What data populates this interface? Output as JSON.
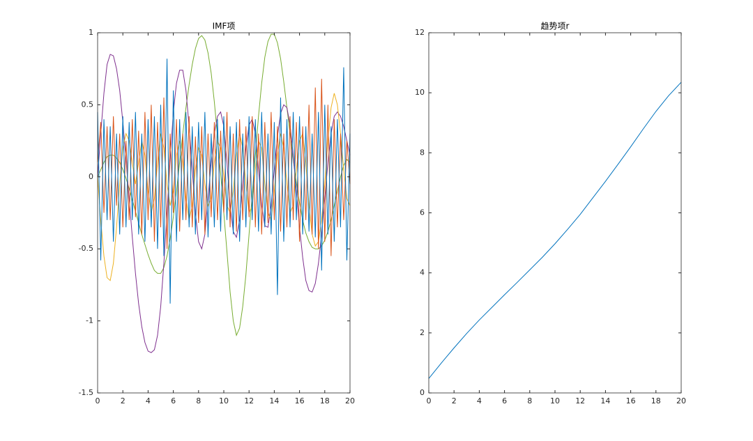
{
  "chart_data": [
    {
      "type": "line",
      "title": "IMF项",
      "xlim": [
        0,
        20
      ],
      "xticks": [
        0,
        2,
        4,
        6,
        8,
        10,
        12,
        14,
        16,
        18,
        20
      ],
      "ylim": [
        -1.5,
        1
      ],
      "yticks": [
        -1.5,
        -1,
        -0.5,
        0,
        0.5,
        1
      ],
      "x": [
        0,
        0.25,
        0.5,
        0.75,
        1,
        1.25,
        1.5,
        1.75,
        2,
        2.25,
        2.5,
        2.75,
        3,
        3.25,
        3.5,
        3.75,
        4,
        4.25,
        4.5,
        4.75,
        5,
        5.25,
        5.5,
        5.75,
        6,
        6.25,
        6.5,
        6.75,
        7,
        7.25,
        7.5,
        7.75,
        8,
        8.25,
        8.5,
        8.75,
        9,
        9.25,
        9.5,
        9.75,
        10,
        10.25,
        10.5,
        10.75,
        11,
        11.25,
        11.5,
        11.75,
        12,
        12.25,
        12.5,
        12.75,
        13,
        13.25,
        13.5,
        13.75,
        14,
        14.25,
        14.5,
        14.75,
        15,
        15.25,
        15.5,
        15.75,
        16,
        16.25,
        16.5,
        16.75,
        17,
        17.25,
        17.5,
        17.75,
        18,
        18.25,
        18.5,
        18.75,
        19,
        19.25,
        19.5,
        19.75,
        20
      ],
      "series": [
        {
          "color": "#77AC30",
          "values": [
            0,
            0.05,
            0.1,
            0.14,
            0.15,
            0.15,
            0.13,
            0.1,
            0.05,
            -0.01,
            -0.08,
            -0.16,
            -0.24,
            -0.32,
            -0.4,
            -0.47,
            -0.54,
            -0.6,
            -0.65,
            -0.67,
            -0.67,
            -0.63,
            -0.55,
            -0.43,
            -0.28,
            -0.1,
            0.1,
            0.3,
            0.48,
            0.64,
            0.78,
            0.89,
            0.96,
            0.98,
            0.95,
            0.86,
            0.72,
            0.52,
            0.28,
            0.02,
            -0.25,
            -0.52,
            -0.8,
            -1.0,
            -1.1,
            -1.05,
            -0.9,
            -0.68,
            -0.4,
            -0.12,
            0.15,
            0.42,
            0.65,
            0.83,
            0.94,
            0.99,
            0.99,
            0.93,
            0.82,
            0.66,
            0.48,
            0.3,
            0.12,
            -0.04,
            -0.18,
            -0.3,
            -0.39,
            -0.45,
            -0.49,
            -0.5,
            -0.5,
            -0.48,
            -0.44,
            -0.38,
            -0.3,
            -0.2,
            -0.1,
            0,
            0.08,
            0.12,
            0.1
          ]
        },
        {
          "color": "#7E2F8E",
          "values": [
            0,
            0.3,
            0.58,
            0.78,
            0.85,
            0.84,
            0.75,
            0.6,
            0.38,
            0.12,
            -0.15,
            -0.42,
            -0.67,
            -0.88,
            -1.04,
            -1.15,
            -1.21,
            -1.22,
            -1.2,
            -1.1,
            -0.9,
            -0.6,
            -0.25,
            0.12,
            0.45,
            0.65,
            0.74,
            0.74,
            0.6,
            0.35,
            0.05,
            -0.25,
            -0.45,
            -0.5,
            -0.4,
            -0.15,
            0.1,
            0.3,
            0.42,
            0.45,
            0.35,
            0.1,
            -0.2,
            -0.38,
            -0.42,
            -0.3,
            -0.05,
            0.2,
            0.36,
            0.4,
            0.3,
            0.05,
            -0.2,
            -0.34,
            -0.35,
            -0.2,
            0.05,
            0.28,
            0.44,
            0.5,
            0.48,
            0.36,
            0.15,
            -0.1,
            -0.35,
            -0.56,
            -0.72,
            -0.79,
            -0.8,
            -0.74,
            -0.6,
            -0.4,
            -0.15,
            0.1,
            0.3,
            0.42,
            0.45,
            0.42,
            0.35,
            0.25,
            0.15
          ]
        },
        {
          "color": "#EDB120",
          "values": [
            0,
            -0.3,
            -0.55,
            -0.7,
            -0.72,
            -0.6,
            -0.35,
            -0.05,
            0.2,
            0.3,
            0.25,
            0.1,
            -0.05,
            0.1,
            0.25,
            0.15,
            -0.1,
            -0.25,
            -0.15,
            0.1,
            0.3,
            0.2,
            -0.05,
            -0.2,
            -0.1,
            0.15,
            0.25,
            0.1,
            -0.15,
            -0.3,
            -0.2,
            0.05,
            0.2,
            0.15,
            -0.05,
            -0.2,
            -0.15,
            0.1,
            0.25,
            0.2,
            0,
            -0.2,
            -0.25,
            -0.1,
            0.15,
            0.3,
            0.2,
            -0.05,
            -0.25,
            -0.2,
            0.05,
            0.25,
            0.2,
            -0.05,
            -0.25,
            -0.3,
            -0.1,
            0.15,
            0.3,
            0.2,
            -0.05,
            -0.25,
            -0.2,
            0.05,
            0.25,
            0.3,
            0.1,
            -0.2,
            -0.4,
            -0.48,
            -0.45,
            -0.3,
            -0.05,
            0.25,
            0.48,
            0.58,
            0.5,
            0.3,
            0.05,
            -0.15,
            -0.2
          ]
        },
        {
          "color": "#D95319",
          "values": [
            0.1,
            0.38,
            -0.25,
            0.35,
            -0.3,
            0.42,
            -0.2,
            0.3,
            -0.35,
            0.25,
            -0.3,
            0.4,
            -0.28,
            0.32,
            -0.4,
            0.45,
            -0.3,
            0.5,
            -0.45,
            0.38,
            -0.35,
            0.55,
            -0.5,
            0.3,
            -0.25,
            0.4,
            -0.38,
            0.3,
            -0.3,
            0.42,
            -0.35,
            0.28,
            -0.32,
            0.35,
            -0.4,
            0.3,
            -0.28,
            0.38,
            -0.3,
            0.32,
            -0.25,
            0.45,
            -0.35,
            0.3,
            -0.38,
            0.4,
            -0.3,
            0.35,
            -0.28,
            0.42,
            -0.35,
            0.3,
            -0.4,
            0.38,
            -0.32,
            0.45,
            -0.3,
            0.35,
            -0.38,
            0.3,
            -0.35,
            0.42,
            -0.3,
            0.38,
            -0.45,
            0.35,
            -0.3,
            0.5,
            -0.4,
            0.62,
            -0.5,
            0.68,
            -0.45,
            0.5,
            -0.55,
            0.4,
            -0.35,
            0.3,
            -0.3,
            0.25,
            -0.05
          ]
        },
        {
          "color": "#0072BD",
          "values": [
            0.45,
            -0.58,
            0.4,
            -0.3,
            0.35,
            -0.45,
            0.3,
            -0.4,
            0.42,
            -0.35,
            0.38,
            -0.3,
            0.45,
            -0.4,
            0.3,
            -0.45,
            0.4,
            -0.35,
            0.42,
            -0.5,
            0.5,
            -0.55,
            0.82,
            -0.88,
            0.6,
            -0.45,
            0.4,
            -0.3,
            0.45,
            -0.35,
            0.35,
            -0.4,
            0.38,
            -0.3,
            0.45,
            -0.42,
            0.3,
            -0.35,
            0.4,
            -0.38,
            0.42,
            -0.3,
            0.35,
            -0.4,
            0.38,
            -0.45,
            0.3,
            -0.35,
            0.42,
            -0.3,
            0.4,
            -0.38,
            0.45,
            -0.35,
            0.3,
            -0.4,
            0.38,
            -0.82,
            0.55,
            -0.45,
            0.4,
            -0.35,
            0.45,
            -0.3,
            0.42,
            -0.4,
            0.35,
            -0.38,
            0.3,
            -0.42,
            0.45,
            -0.65,
            0.5,
            -0.4,
            0.35,
            -0.45,
            0.4,
            -0.35,
            0.76,
            -0.58,
            0.3
          ]
        }
      ]
    },
    {
      "type": "line",
      "title": "趋势项r",
      "xlim": [
        0,
        20
      ],
      "xticks": [
        0,
        2,
        4,
        6,
        8,
        10,
        12,
        14,
        16,
        18,
        20
      ],
      "ylim": [
        0,
        12
      ],
      "yticks": [
        0,
        2,
        4,
        6,
        8,
        10,
        12
      ],
      "x": [
        0,
        1,
        2,
        3,
        4,
        5,
        6,
        7,
        8,
        9,
        10,
        11,
        12,
        13,
        14,
        15,
        16,
        17,
        18,
        19,
        20
      ],
      "series": [
        {
          "color": "#0072BD",
          "values": [
            0.48,
            1.0,
            1.5,
            1.98,
            2.43,
            2.85,
            3.27,
            3.68,
            4.1,
            4.52,
            4.97,
            5.45,
            5.95,
            6.5,
            7.05,
            7.62,
            8.2,
            8.8,
            9.38,
            9.9,
            10.35
          ]
        }
      ]
    }
  ]
}
